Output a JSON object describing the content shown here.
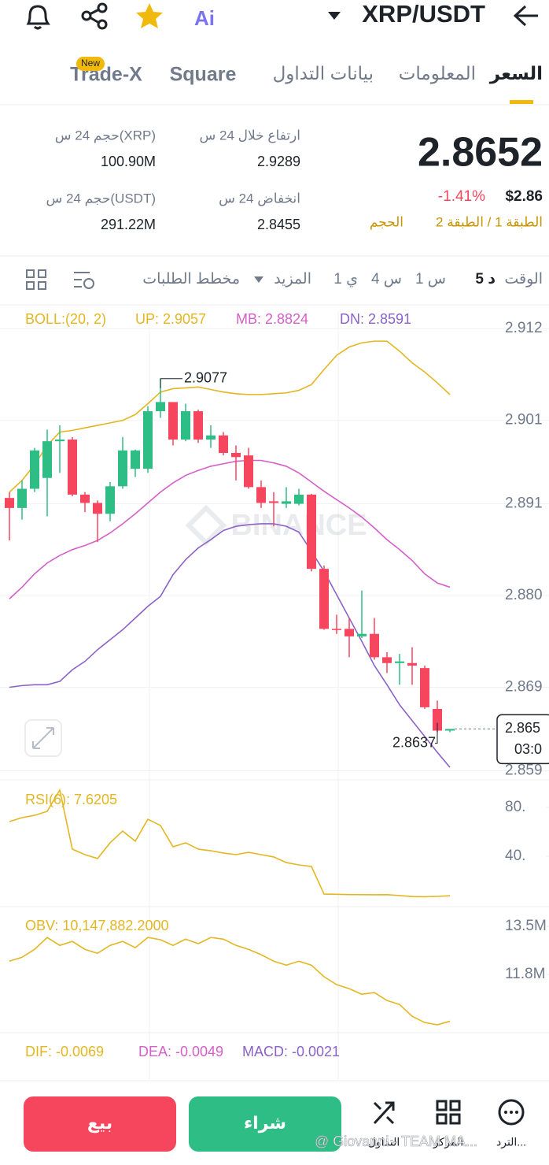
{
  "header": {
    "pair": "XRP/USDT",
    "ai": "Ai"
  },
  "tabs": [
    "السعر",
    "المعلومات",
    "بيانات التداول",
    "Square",
    "Trade-X"
  ],
  "tab_badge": "New",
  "ticker": {
    "price": "2.8652",
    "change": "-1.41%",
    "usd": "$2.86",
    "layers": "الطبقة 1 / الطبقة 2",
    "volume_link": "الحجم"
  },
  "stats": [
    {
      "label": "ارتفاع خلال 24 س",
      "value": "2.9289"
    },
    {
      "label": "حجم 24 س(XRP)",
      "value": "100.90M"
    },
    {
      "label": "انخفاض 24 س",
      "value": "2.8455"
    },
    {
      "label": "حجم 24 س(USDT)",
      "value": "291.22M"
    }
  ],
  "toolbar": {
    "time": "الوقت",
    "intervals": [
      "5 د",
      "1 س",
      "4 س",
      "1 ي"
    ],
    "more": "المزيد",
    "depth": "مخطط الطلبات"
  },
  "chart_data": [
    {
      "type": "candlestick",
      "title": "BOLL:(20, 2)",
      "up_color": "#2ebd85",
      "down_color": "#f6465d",
      "grid": true,
      "ylim": [
        2.8579,
        2.9141
      ],
      "yticks": [
        2.912,
        2.901,
        2.891,
        {
          "value": 2.88,
          "label": "2.880"
        },
        2.869,
        2.859
      ],
      "open": [
        2.8917,
        2.8905,
        2.8928,
        2.8941,
        2.8985,
        2.8987,
        2.8921,
        2.8911,
        2.8898,
        2.8931,
        2.8952,
        2.8952,
        2.9021,
        2.9032,
        2.8987,
        2.9021,
        2.8987,
        2.8992,
        2.8971,
        2.8968,
        2.893,
        2.8913,
        2.891,
        2.891,
        2.8921,
        2.8832,
        2.876,
        2.876,
        2.8751,
        2.8754,
        2.8726,
        2.8719,
        2.8719,
        2.8713,
        2.8664,
        2.8638
      ],
      "high": [
        2.8924,
        2.8938,
        2.8977,
        2.8999,
        2.9004,
        2.899,
        2.8924,
        2.8914,
        2.8936,
        2.899,
        2.8975,
        2.9027,
        2.906,
        2.903,
        2.903,
        2.9023,
        2.9004,
        2.8996,
        2.898,
        2.8977,
        2.8938,
        2.8924,
        2.893,
        2.8928,
        2.8922,
        2.8836,
        2.8777,
        2.8773,
        2.8806,
        2.8773,
        2.8732,
        2.873,
        2.8738,
        2.8716,
        2.8674,
        2.864
      ],
      "low": [
        2.8866,
        2.8891,
        2.8924,
        2.8895,
        2.8947,
        2.8919,
        2.89,
        2.8864,
        2.8889,
        2.8928,
        2.8942,
        2.8947,
        2.9013,
        2.898,
        2.8985,
        2.8983,
        2.8977,
        2.8968,
        2.8938,
        2.8928,
        2.8905,
        2.8883,
        2.8905,
        2.8908,
        2.8829,
        2.8759,
        2.8754,
        2.8726,
        2.8749,
        2.8723,
        2.8707,
        2.8693,
        2.8693,
        2.8664,
        2.8636,
        2.8636
      ],
      "close": [
        2.8905,
        2.8928,
        2.8974,
        2.8985,
        2.8987,
        2.8921,
        2.8911,
        2.8898,
        2.8931,
        2.8974,
        2.8974,
        2.9021,
        2.9032,
        2.8987,
        2.9021,
        2.8987,
        2.8992,
        2.8971,
        2.8966,
        2.893,
        2.8911,
        2.8911,
        2.8913,
        2.8921,
        2.8832,
        2.876,
        2.8759,
        2.8751,
        2.8754,
        2.8726,
        2.8719,
        2.8721,
        2.8716,
        2.8666,
        2.8638,
        2.864
      ],
      "series": [
        {
          "name": "UP: 2.9057",
          "color": "#e4b622",
          "values": [
            2.8924,
            2.8938,
            2.8957,
            2.898,
            2.8996,
            2.8998,
            2.9001,
            2.9004,
            2.9007,
            2.901,
            2.9017,
            2.903,
            2.9044,
            2.9048,
            2.9049,
            2.905,
            2.9047,
            2.9044,
            2.9042,
            2.9041,
            2.9041,
            2.9042,
            2.9043,
            2.9046,
            2.9053,
            2.9071,
            2.9088,
            2.9098,
            2.9103,
            2.9105,
            2.9105,
            2.9093,
            2.9079,
            2.9068,
            2.9055,
            2.9041
          ]
        },
        {
          "name": "MB: 2.8824",
          "color": "#d460c8",
          "values": [
            2.8796,
            2.881,
            2.8826,
            2.8839,
            2.8848,
            2.8855,
            2.886,
            2.8866,
            2.8875,
            2.8886,
            2.8898,
            2.8911,
            2.8924,
            2.8935,
            2.8944,
            2.895,
            2.8955,
            2.8958,
            2.8961,
            2.8962,
            2.8962,
            2.8959,
            2.8955,
            2.8947,
            2.8936,
            2.8925,
            2.8915,
            2.8905,
            2.8894,
            2.8881,
            2.8867,
            2.8855,
            2.8842,
            2.8826,
            2.8815,
            2.881
          ]
        },
        {
          "name": "DN: 2.8591",
          "color": "#8b62c8",
          "values": [
            2.869,
            2.8692,
            2.8693,
            2.8693,
            2.8697,
            2.8711,
            2.8721,
            2.8735,
            2.8747,
            2.8759,
            2.8773,
            2.8787,
            2.8799,
            2.8825,
            2.8843,
            2.8857,
            2.8867,
            2.8878,
            2.8883,
            2.8885,
            2.8886,
            2.8886,
            2.8883,
            2.8876,
            2.8853,
            2.8829,
            2.8801,
            2.8773,
            2.8745,
            2.8716,
            2.8693,
            2.8669,
            2.865,
            2.8631,
            2.8612,
            2.8594
          ]
        }
      ],
      "high_label": "2.9077",
      "low_label": "2.8637",
      "last_price_label": "2.865",
      "countdown": "03:0"
    },
    {
      "type": "line",
      "title": "RSI(6): 7.6205",
      "color": "#e4b622",
      "grid": false,
      "ylim": [
        0,
        100
      ],
      "yticks": [
        {
          "value": 80,
          "label": "80."
        },
        {
          "value": 40,
          "label": "40."
        }
      ],
      "values": [
        68.4,
        71.6,
        73.5,
        76.8,
        94.2,
        45.8,
        41.3,
        38.1,
        51.0,
        60.6,
        52.3,
        70.3,
        65.2,
        47.7,
        51.0,
        45.8,
        44.5,
        42.6,
        41.3,
        43.2,
        41.3,
        39.4,
        34.8,
        32.9,
        31.6,
        9.0,
        8.8,
        8.6,
        8.5,
        8.4,
        8.5,
        7.8,
        7.0,
        6.8,
        7.1,
        7.6205
      ]
    },
    {
      "type": "line",
      "title": "OBV: 10,147,882.2000",
      "color": "#e4b622",
      "grid": false,
      "ylim": [
        9770000,
        13950000
      ],
      "yticks": [
        {
          "value": 13500000,
          "label": "13.5M"
        },
        {
          "value": 11800000,
          "label": "11.8M"
        }
      ],
      "values": [
        12270000,
        12410000,
        12690000,
        13110000,
        12830000,
        12970000,
        12690000,
        12550000,
        12830000,
        12970000,
        12750000,
        13110000,
        13030000,
        12830000,
        13050000,
        12890000,
        13110000,
        13050000,
        12830000,
        12690000,
        12500000,
        12270000,
        12130000,
        12270000,
        12130000,
        11720000,
        11440000,
        11300000,
        11100000,
        11160000,
        10880000,
        10740000,
        10320000,
        10100000,
        10020000,
        10147882.2
      ]
    },
    {
      "type": "legend",
      "series": [
        {
          "name": "DIF: -0.0069",
          "color": "#e4b622"
        },
        {
          "name": "DEA: -0.0049",
          "color": "#d460c8"
        },
        {
          "name": "MACD: -0.0021",
          "color": "#8b62c8"
        }
      ]
    }
  ],
  "actions": {
    "sell": "بيع",
    "buy": "شراء",
    "tools": [
      "التداول",
      "المركز",
      "الترد..."
    ]
  },
  "watermark": "BINANCE",
  "credit": "@ Giovanni - TEAM MA..."
}
